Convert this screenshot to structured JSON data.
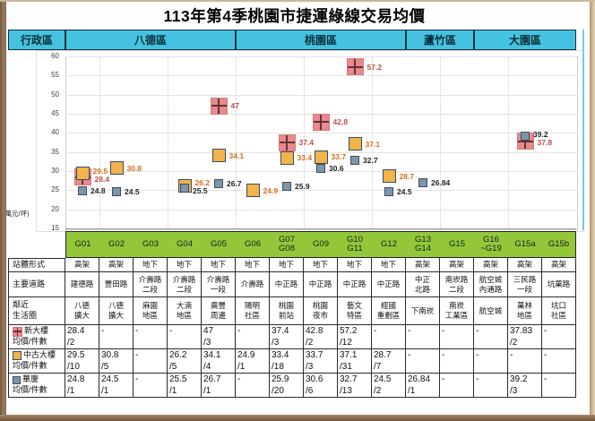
{
  "title": "113年第4季桃園市捷運綠線交易均價",
  "unit_label": "(萬元/坪)",
  "district_header": {
    "label": "行政區",
    "districts": [
      {
        "name": "八德區",
        "span": 5
      },
      {
        "name": "桃園區",
        "span": 5
      },
      {
        "name": "蘆竹區",
        "span": 2
      },
      {
        "name": "大園區",
        "span": 3
      }
    ]
  },
  "colors": {
    "header_bg": "#45c2e0",
    "station_row_bg": "#93c73a",
    "new_building": "#e9898d",
    "new_building_label": "#bf4b49",
    "old_building": "#f0b449",
    "old_building_label": "#d96c1c",
    "midrise": "#7d95a9",
    "midrise_label": "#262626"
  },
  "station_codes": [
    "G01",
    "G02",
    "G03",
    "G04",
    "G05",
    "G06",
    "G07\nG08",
    "G09",
    "G10\nG11",
    "G12",
    "G13\nG14",
    "G15",
    "G16\n~G19",
    "G15a",
    "G15b"
  ],
  "info_rows": [
    {
      "label": "站體形式",
      "values": [
        "高架",
        "高架",
        "地下",
        "地下",
        "地下",
        "地下",
        "地下",
        "地下",
        "地下",
        "地下",
        "高架",
        "高架",
        "高架",
        "高架",
        "高架"
      ]
    },
    {
      "label": "主要道路",
      "values": [
        "建德路",
        "豐田路",
        "介壽路\n二段",
        "介壽路\n二段",
        "介壽路\n一段",
        "介壽路",
        "中正路",
        "中正路",
        "中正路",
        "中正路",
        "中正\n北路",
        "南崁路\n二段",
        "航空城\n內通路",
        "三民路\n一段",
        "坑菓路"
      ]
    },
    {
      "label": "鄰近\n生活圈",
      "values": [
        "八德\n擴大",
        "八德\n擴大",
        "麻園\n地區",
        "大湳\n地區",
        "廣豐\n周邊",
        "陽明\n社區",
        "桃園\n前站",
        "桃園\n夜市",
        "藝文\n特區",
        "經國\n重劃區",
        "下南崁",
        "南崁\n工業區",
        "航空城",
        "菓林\n地區",
        "坑口\n社區"
      ]
    }
  ],
  "series_rows": [
    {
      "name": "新大樓",
      "sub": "均價/件數",
      "marker": "new-building",
      "cells": [
        "28.4\n/2",
        "-",
        "-",
        "-",
        "47\n/3",
        "-",
        "37.4\n/3",
        "42.8\n/2",
        "57.2\n/12",
        "-",
        "-",
        "-",
        "-",
        "37.83\n/2",
        "-"
      ]
    },
    {
      "name": "中古大樓",
      "sub": "均價/件數",
      "marker": "old-building",
      "cells": [
        "29.5\n/10",
        "30.8\n/5",
        "-",
        "26.2\n/5",
        "34.1\n/4",
        "24.9\n/1",
        "33.4\n/18",
        "33.7\n/3",
        "37.1\n/31",
        "28.7\n/7",
        "-",
        "-",
        "-",
        "-",
        "-"
      ]
    },
    {
      "name": "華廈",
      "sub": "均價/件數",
      "marker": "midrise",
      "cells": [
        "24.8\n/1",
        "24.5\n/1",
        "-",
        "25.5\n/1",
        "26.7\n/1",
        "-",
        "25.9\n/20",
        "30.6\n/6",
        "32.7\n/13",
        "24.5\n/2",
        "26.84\n/1",
        "-",
        "-",
        "39.2\n/3",
        "-"
      ]
    }
  ],
  "chart_data": {
    "type": "scatter",
    "title": "113年第4季桃園市捷運綠線交易均價",
    "ylabel": "(萬元/坪)",
    "ylim": [
      15,
      60
    ],
    "ytick_step": 5,
    "grid": true,
    "legend_position": "table-rows-below",
    "categories": [
      "G01",
      "G02",
      "G03",
      "G04",
      "G05",
      "G06",
      "G07 G08",
      "G09",
      "G10 G11",
      "G12",
      "G13 G14",
      "G15",
      "G16~G19",
      "G15a",
      "G15b"
    ],
    "series": [
      {
        "name": "新大樓均價",
        "marker": "square-cross",
        "color": "#e9898d",
        "values": [
          28.4,
          null,
          null,
          null,
          47,
          null,
          37.4,
          42.8,
          57.2,
          null,
          null,
          null,
          null,
          37.8,
          null
        ],
        "labels": [
          "28.4",
          null,
          null,
          null,
          "47",
          null,
          "37.4",
          "42.8",
          "57.2",
          null,
          null,
          null,
          null,
          "37.8",
          null
        ]
      },
      {
        "name": "中古大樓均價",
        "marker": "square",
        "color": "#f0b449",
        "values": [
          29.5,
          30.8,
          null,
          26.2,
          34.1,
          24.9,
          33.4,
          33.7,
          37.1,
          28.7,
          null,
          null,
          null,
          null,
          null
        ],
        "labels": [
          "29.5",
          "30.8",
          null,
          "26.2",
          "34.1",
          "24.9",
          "33.4",
          "33.7",
          "37.1",
          "28.7",
          null,
          null,
          null,
          null,
          null
        ]
      },
      {
        "name": "華廈均價",
        "marker": "square",
        "color": "#7d95a9",
        "values": [
          24.8,
          24.5,
          null,
          25.5,
          26.7,
          null,
          25.9,
          30.6,
          32.7,
          24.5,
          26.84,
          null,
          null,
          39.2,
          null
        ],
        "labels": [
          "24.8",
          "24.5",
          null,
          "25.5",
          "26.7",
          null,
          "25.9",
          "30.6",
          "32.7",
          "24.5",
          "26.84",
          null,
          null,
          "39.2",
          null
        ]
      }
    ]
  }
}
